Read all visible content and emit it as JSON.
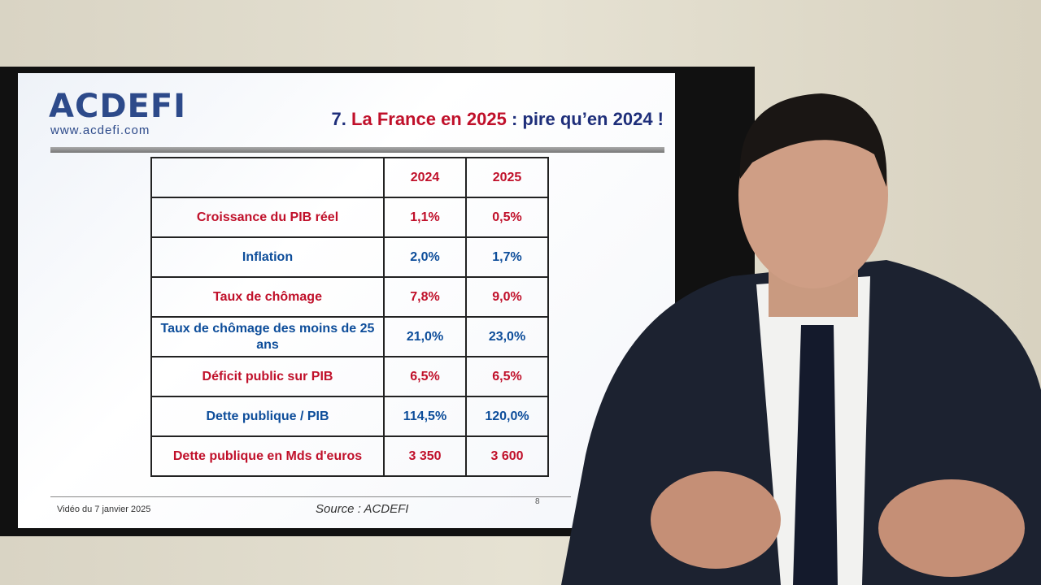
{
  "header": {
    "logo": "ACDEFI",
    "url": "www.acdefi.com",
    "title": [
      "7.",
      "La France en 2025",
      ": pire qu’en 2024 !"
    ]
  },
  "table": {
    "columns": [
      "2024",
      "2025"
    ],
    "rows": [
      {
        "label": "Croissance du PIB réel",
        "values": [
          "1,1%",
          "0,5%"
        ]
      },
      {
        "label": "Inflation",
        "values": [
          "2,0%",
          "1,7%"
        ]
      },
      {
        "label": "Taux de chômage",
        "values": [
          "7,8%",
          "9,0%"
        ]
      },
      {
        "label": "Taux de chômage des moins de 25 ans",
        "values": [
          "21,0%",
          "23,0%"
        ]
      },
      {
        "label": "Déficit public sur PIB",
        "values": [
          "6,5%",
          "6,5%"
        ]
      },
      {
        "label": "Dette publique / PIB",
        "values": [
          "114,5%",
          "120,0%"
        ]
      },
      {
        "label": "Dette publique en Mds d'euros",
        "values": [
          "3 350",
          "3 600"
        ]
      }
    ]
  },
  "footer": {
    "date": "Vidéo du 7 janvier 2025",
    "source": "Source : ACDEFI",
    "page": "8"
  }
}
